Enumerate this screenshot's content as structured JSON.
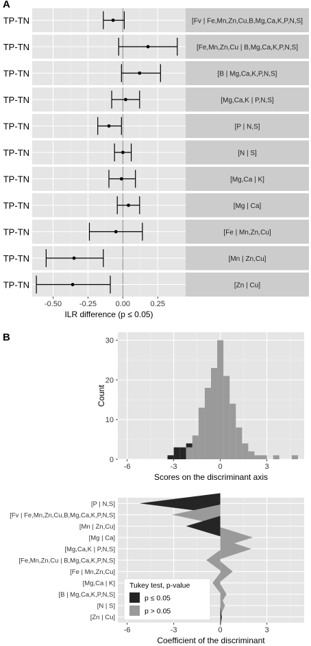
{
  "panel_labels": {
    "a": "A",
    "b": "B"
  },
  "colors": {
    "panel_bg": "#e5e5e5",
    "strip_bg": "#cccccc",
    "grid_major": "#ffffff",
    "grid_minor": "#f2f2f2",
    "zero_line": "#8c8c8c",
    "significant": "#252525",
    "not_significant": "#9a9a9a",
    "point": "#000000"
  },
  "chart_data": [
    {
      "id": "panel-a",
      "type": "scatter",
      "subtype": "point-range facets",
      "xlabel": "ILR difference (p ≤ 0.05)",
      "xlim": [
        -0.65,
        0.45
      ],
      "xticks": [
        -0.5,
        -0.25,
        0.0,
        0.25
      ],
      "xtick_labels": [
        "-0.50",
        "-0.25",
        "0.00",
        "0.25"
      ],
      "row_label": "TP-TN",
      "facets": [
        {
          "strip": "[Fv | Fe,Mn,Zn,Cu,B,Mg,Ca,K,P,N,S]",
          "estimate": -0.07,
          "low": -0.14,
          "high": 0.01
        },
        {
          "strip": "[Fe,Mn,Zn,Cu | B,Mg,Ca,K,P,N,S]",
          "estimate": 0.18,
          "low": -0.03,
          "high": 0.39
        },
        {
          "strip": "[B | Mg,Ca,K,P,N,S]",
          "estimate": 0.12,
          "low": -0.01,
          "high": 0.27
        },
        {
          "strip": "[Mg,Ca,K | P,N,S]",
          "estimate": 0.02,
          "low": -0.08,
          "high": 0.12
        },
        {
          "strip": "[P | N,S]",
          "estimate": -0.1,
          "low": -0.18,
          "high": -0.01
        },
        {
          "strip": "[N | S]",
          "estimate": 0.0,
          "low": -0.06,
          "high": 0.06
        },
        {
          "strip": "[Mg,Ca | K]",
          "estimate": -0.01,
          "low": -0.1,
          "high": 0.09
        },
        {
          "strip": "[Mg | Ca]",
          "estimate": 0.04,
          "low": -0.04,
          "high": 0.12
        },
        {
          "strip": "[Fe | Mn,Zn,Cu]",
          "estimate": -0.05,
          "low": -0.24,
          "high": 0.14
        },
        {
          "strip": "[Mn | Zn,Cu]",
          "estimate": -0.35,
          "low": -0.55,
          "high": -0.14
        },
        {
          "strip": "[Zn | Cu]",
          "estimate": -0.36,
          "low": -0.62,
          "high": -0.09
        }
      ]
    },
    {
      "id": "panel-b-histogram",
      "type": "bar",
      "subtype": "stacked histogram",
      "xlabel": "Scores on the discriminant axis",
      "ylabel": "Count",
      "xlim": [
        -6.6,
        5.4
      ],
      "ylim": [
        0,
        32
      ],
      "xticks": [
        -6,
        -3,
        0,
        3
      ],
      "yticks": [
        0,
        10,
        20,
        30
      ],
      "bin_width": 0.4,
      "bins_left": [
        -3.4,
        -3.0,
        -2.6,
        -2.2,
        -1.8,
        -1.4,
        -1.0,
        -0.6,
        -0.2,
        0.2,
        0.6,
        1.0,
        1.4,
        1.8,
        2.2,
        2.6,
        3.0,
        3.4,
        3.8,
        4.2,
        4.6
      ],
      "series": [
        {
          "name": "p ≤ 0.05",
          "values": [
            1,
            3,
            3,
            1,
            0,
            0,
            0,
            0,
            0,
            0,
            0,
            0,
            0,
            0,
            0,
            0,
            0,
            0,
            0,
            0,
            0
          ]
        },
        {
          "name": "p > 0.05",
          "values": [
            0,
            0,
            0,
            3,
            6,
            13,
            18,
            23,
            30,
            21,
            14,
            8,
            4,
            2,
            1,
            1,
            0,
            1,
            0,
            0,
            1
          ]
        }
      ]
    },
    {
      "id": "panel-b-coefficients",
      "type": "bar",
      "subtype": "wedge coefficient chart",
      "xlabel": "Coefficient of the discriminant",
      "xlim": [
        -6.6,
        5.4
      ],
      "xticks": [
        -6,
        -3,
        0,
        3
      ],
      "categories": [
        "[P | N,S]",
        "[Fv | Fe,Mn,Zn,Cu,B,Mg,Ca,K,P,N,S]",
        "[Mn | Zn,Cu]",
        "[Mg | Ca]",
        "[Mg,Ca,K | P,N,S]",
        "[Fe,Mn,Zn,Cu | B,Mg,Ca,K,P,N,S]",
        "[Fe | Mn,Zn,Cu]",
        "[Mg,Ca | K]",
        "[B | Mg,Ca,K,P,N,S]",
        "[N | S]",
        "[Zn | Cu]"
      ],
      "values": [
        -5.2,
        -3.1,
        -2.2,
        2.1,
        2.0,
        -0.9,
        0.8,
        -0.5,
        0.4,
        0.3,
        0.1
      ],
      "significant": [
        true,
        false,
        true,
        false,
        false,
        false,
        false,
        false,
        false,
        false,
        true
      ],
      "legend": {
        "title": "Tukey test, p-value",
        "placement": "bottom-left",
        "entries": [
          {
            "label": "p ≤ 0.05",
            "significant": true
          },
          {
            "label": "p > 0.05",
            "significant": false
          }
        ]
      }
    }
  ]
}
